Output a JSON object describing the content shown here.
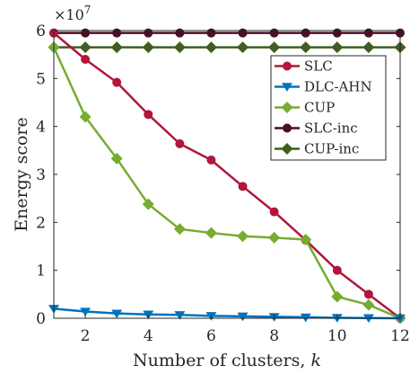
{
  "chart_data": {
    "type": "line",
    "xlabel": "Number of clusters, k",
    "ylabel": "Energy score",
    "y_multiplier": "×10^7",
    "xlim": [
      1,
      12
    ],
    "ylim": [
      0,
      6
    ],
    "xticks": [
      2,
      4,
      6,
      8,
      10,
      12
    ],
    "yticks": [
      0,
      1,
      2,
      3,
      4,
      5,
      6
    ],
    "grid": false,
    "legend_position": "top-right",
    "x": [
      1,
      2,
      3,
      4,
      5,
      6,
      7,
      8,
      9,
      10,
      11,
      12
    ],
    "series": [
      {
        "name": "SLC",
        "color": "#b2163a",
        "marker": "circle",
        "values": [
          5.95,
          5.4,
          4.92,
          4.25,
          3.64,
          3.3,
          2.75,
          2.22,
          1.63,
          1.0,
          0.5,
          0.0
        ]
      },
      {
        "name": "DLC-AHN",
        "color": "#0072bd",
        "marker": "triangle-down",
        "values": [
          0.2,
          0.14,
          0.1,
          0.08,
          0.07,
          0.05,
          0.04,
          0.03,
          0.02,
          0.01,
          0.005,
          0.0
        ]
      },
      {
        "name": "CUP",
        "color": "#77ac30",
        "marker": "diamond",
        "values": [
          5.65,
          4.2,
          3.33,
          2.38,
          1.86,
          1.78,
          1.71,
          1.68,
          1.64,
          0.45,
          0.28,
          0.0
        ]
      },
      {
        "name": "SLC-inc",
        "color": "#4a0f22",
        "marker": "circle",
        "values": [
          5.95,
          5.95,
          5.95,
          5.95,
          5.95,
          5.95,
          5.95,
          5.95,
          5.95,
          5.95,
          5.95,
          5.95
        ]
      },
      {
        "name": "CUP-inc",
        "color": "#3f5f1f",
        "marker": "diamond",
        "values": [
          5.65,
          5.65,
          5.65,
          5.65,
          5.65,
          5.65,
          5.65,
          5.65,
          5.65,
          5.65,
          5.65,
          5.65
        ]
      }
    ]
  }
}
